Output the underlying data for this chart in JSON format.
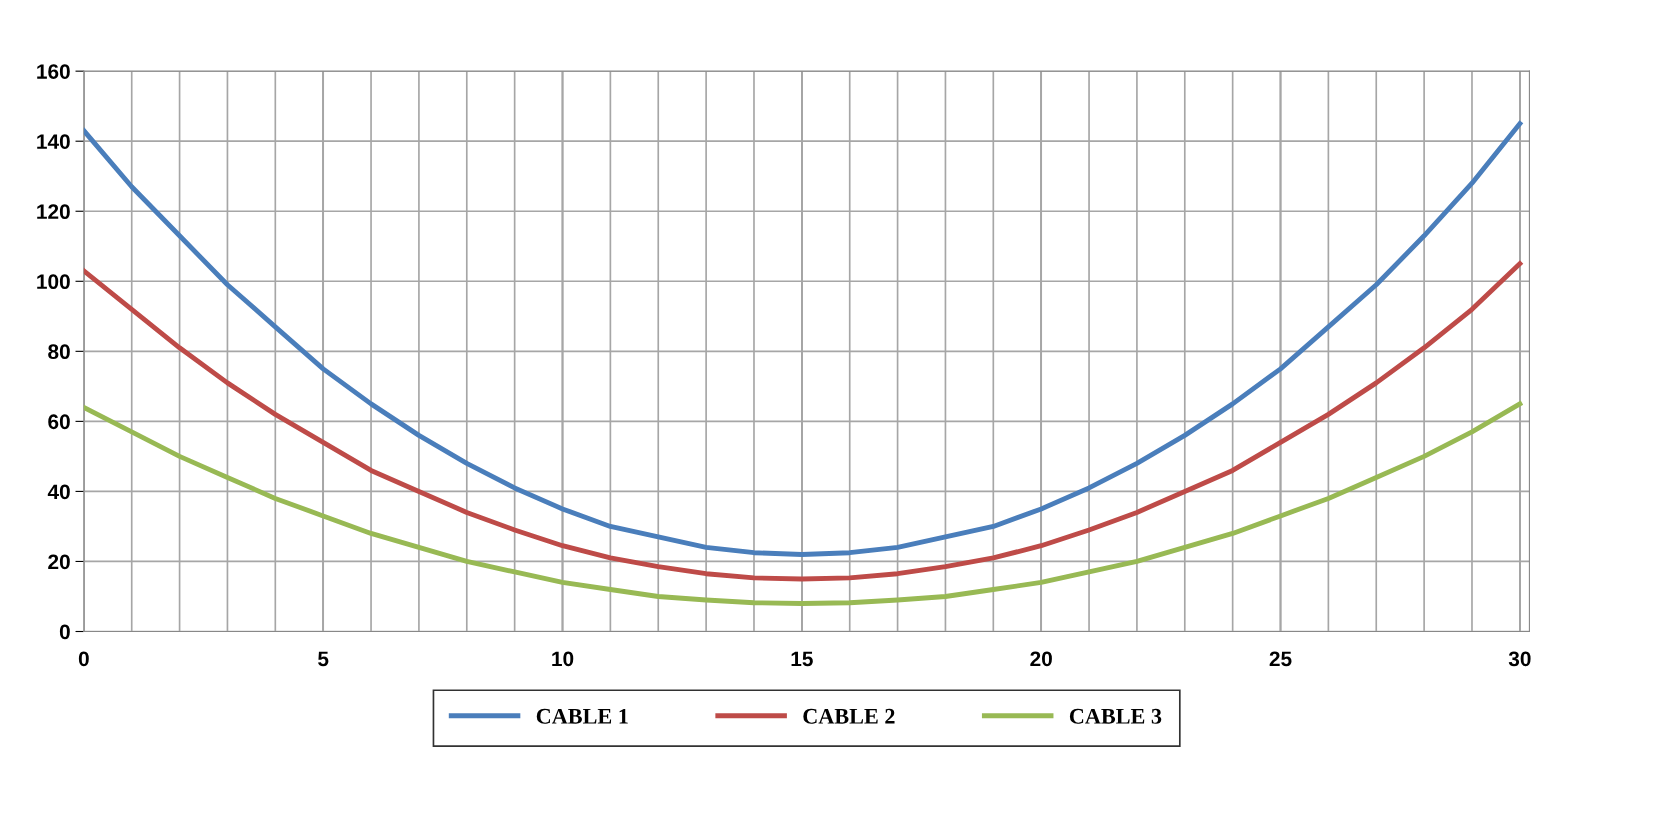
{
  "chart_data": {
    "type": "line",
    "x": [
      0,
      1,
      2,
      3,
      4,
      5,
      6,
      7,
      8,
      9,
      10,
      11,
      12,
      13,
      14,
      15,
      16,
      17,
      18,
      19,
      20,
      21,
      22,
      23,
      24,
      25,
      26,
      27,
      28,
      29,
      30
    ],
    "series": [
      {
        "name": "CABLE 1",
        "color": "#4a7ebb",
        "values": [
          143,
          127,
          113,
          99,
          87,
          75,
          65,
          56,
          48,
          41,
          35,
          30,
          27,
          24,
          22.5,
          22,
          22.5,
          24,
          27,
          30,
          35,
          41,
          48,
          56,
          65,
          75,
          87,
          99,
          113,
          128,
          145
        ]
      },
      {
        "name": "CABLE 2",
        "color": "#be4b48",
        "values": [
          103,
          92,
          81,
          71,
          62,
          54,
          46,
          40,
          34,
          29,
          24.5,
          21,
          18.5,
          16.5,
          15.3,
          15,
          15.3,
          16.5,
          18.5,
          21,
          24.5,
          29,
          34,
          40,
          46,
          54,
          62,
          71,
          81,
          92,
          105
        ]
      },
      {
        "name": "CABLE 3",
        "color": "#98b954",
        "values": [
          64,
          57,
          50,
          44,
          38,
          33,
          28,
          24,
          20,
          17,
          14,
          12,
          10,
          9,
          8.2,
          8,
          8.2,
          9,
          10,
          12,
          14,
          17,
          20,
          24,
          28,
          33,
          38,
          44,
          50,
          57,
          65
        ]
      }
    ],
    "xlim": [
      0,
      30.2
    ],
    "xticks": [
      0,
      {
        "value": 1,
        "label": null
      },
      {
        "value": 2,
        "label": null
      },
      {
        "value": 3,
        "label": null
      },
      {
        "value": 4,
        "label": null
      },
      5,
      {
        "value": 6,
        "label": null
      },
      {
        "value": 7,
        "label": null
      },
      {
        "value": 8,
        "label": null
      },
      {
        "value": 9,
        "label": null
      },
      10,
      {
        "value": 11,
        "label": null
      },
      {
        "value": 12,
        "label": null
      },
      {
        "value": 13,
        "label": null
      },
      {
        "value": 14,
        "label": null
      },
      15,
      {
        "value": 16,
        "label": null
      },
      {
        "value": 17,
        "label": null
      },
      {
        "value": 18,
        "label": null
      },
      {
        "value": 19,
        "label": null
      },
      20,
      {
        "value": 21,
        "label": null
      },
      {
        "value": 22,
        "label": null
      },
      {
        "value": 23,
        "label": null
      },
      {
        "value": 24,
        "label": null
      },
      25,
      {
        "value": 26,
        "label": null
      },
      {
        "value": 27,
        "label": null
      },
      {
        "value": 28,
        "label": null
      },
      {
        "value": 29,
        "label": null
      },
      30
    ],
    "ylim": [
      0,
      160
    ],
    "yticks": [
      0,
      20,
      40,
      60,
      80,
      100,
      120,
      140,
      160
    ],
    "grid": true,
    "legend": "bottom",
    "marker": "none",
    "line_style": "solid"
  }
}
